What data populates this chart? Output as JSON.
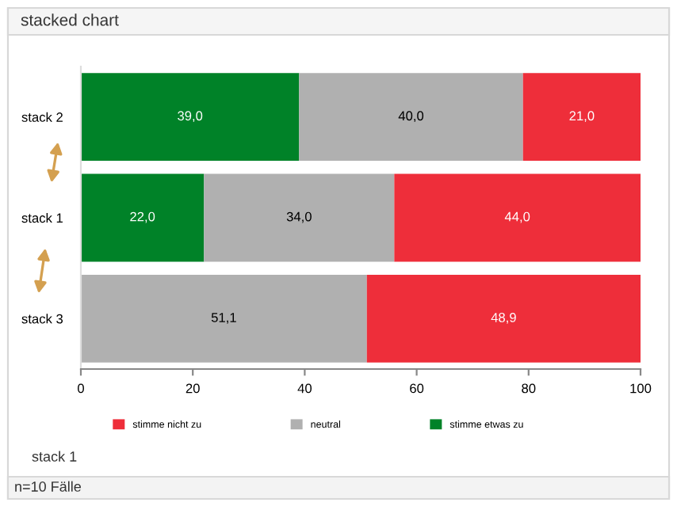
{
  "chart_data": {
    "type": "bar",
    "orientation": "horizontal",
    "stacked": true,
    "title": "stacked chart",
    "categories": [
      "stack 2",
      "stack 1",
      "stack 3"
    ],
    "series": [
      {
        "name": "stimme etwas zu",
        "color": "#008228",
        "values": [
          39.0,
          22.0,
          0
        ],
        "value_labels": [
          "39,0",
          "22,0",
          null
        ]
      },
      {
        "name": "neutral",
        "color": "#b0b0b0",
        "values": [
          40.0,
          34.0,
          51.1
        ],
        "value_labels": [
          "40,0",
          "34,0",
          "51,1"
        ]
      },
      {
        "name": "stimme nicht zu",
        "color": "#ee2e3a",
        "values": [
          21.0,
          44.0,
          48.9
        ],
        "value_labels": [
          "21,0",
          "44,0",
          "48,9"
        ]
      }
    ],
    "xlim": [
      0,
      100
    ],
    "xticks": [
      0,
      20,
      40,
      60,
      80,
      100
    ],
    "grid": false,
    "legend": "bottom",
    "annotations": [
      "stack 1",
      "n=10 Fälle"
    ]
  }
}
